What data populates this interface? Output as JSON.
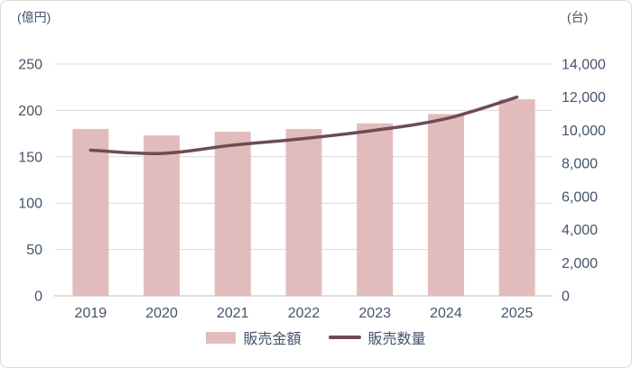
{
  "chart_data": {
    "type": "combo",
    "title": "",
    "categories": [
      "2019",
      "2020",
      "2021",
      "2022",
      "2023",
      "2024",
      "2025"
    ],
    "series": [
      {
        "name": "販売金額",
        "type": "bar",
        "axis": "left",
        "values": [
          180,
          173,
          177,
          180,
          186,
          196,
          212
        ],
        "color": "#e2bcbc"
      },
      {
        "name": "販売数量",
        "type": "line",
        "axis": "right",
        "values": [
          8800,
          8600,
          9100,
          9500,
          10000,
          10700,
          12000
        ],
        "color": "#6d4c56"
      }
    ],
    "left_axis": {
      "unit_label": "(億円)",
      "min": 0,
      "max": 250,
      "step": 50,
      "ticks": [
        "0",
        "50",
        "100",
        "150",
        "200",
        "250"
      ]
    },
    "right_axis": {
      "unit_label": "(台)",
      "min": 0,
      "max": 14000,
      "step": 2000,
      "ticks": [
        "0",
        "2,000",
        "4,000",
        "6,000",
        "8,000",
        "10,000",
        "12,000",
        "14,000"
      ]
    },
    "grid": true,
    "legend_position": "bottom",
    "colors": {
      "text": "#44546a",
      "grid": "#d9d9d9",
      "axis": "#bfbfbf"
    }
  }
}
